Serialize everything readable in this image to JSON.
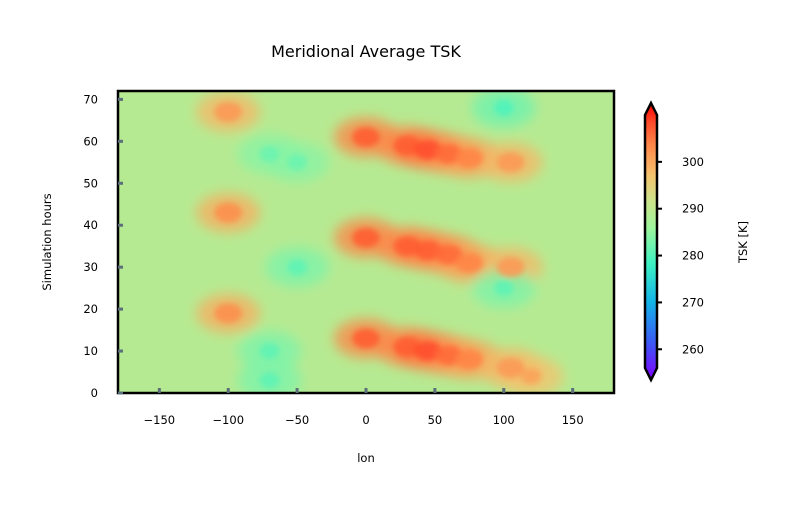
{
  "chart_data": {
    "type": "heatmap",
    "title": "Meridional Average TSK",
    "xlabel": "lon",
    "ylabel": "Simulation hours",
    "xlim": [
      -180,
      180
    ],
    "ylim": [
      0,
      72
    ],
    "xticks": [
      -150,
      -100,
      -50,
      0,
      50,
      100,
      150
    ],
    "yticks": [
      0,
      10,
      20,
      30,
      40,
      50,
      60,
      70
    ],
    "colorbar": {
      "label": "TSK [K]",
      "range": [
        256,
        310
      ],
      "ticks": [
        260,
        270,
        280,
        290,
        300
      ],
      "extend": "both",
      "colormap": "rainbow"
    },
    "baseline_K": 287,
    "features": [
      {
        "lon": -100,
        "hour": 67,
        "value_K": 300
      },
      {
        "lon": -100,
        "hour": 43,
        "value_K": 301
      },
      {
        "lon": -100,
        "hour": 19,
        "value_K": 301
      },
      {
        "lon": 0,
        "hour": 61,
        "value_K": 305
      },
      {
        "lon": 30,
        "hour": 59,
        "value_K": 305
      },
      {
        "lon": 45,
        "hour": 58,
        "value_K": 306
      },
      {
        "lon": 60,
        "hour": 57,
        "value_K": 304
      },
      {
        "lon": 75,
        "hour": 56,
        "value_K": 302
      },
      {
        "lon": 105,
        "hour": 55,
        "value_K": 300
      },
      {
        "lon": 0,
        "hour": 37,
        "value_K": 305
      },
      {
        "lon": 30,
        "hour": 35,
        "value_K": 305
      },
      {
        "lon": 45,
        "hour": 34,
        "value_K": 305
      },
      {
        "lon": 60,
        "hour": 33,
        "value_K": 304
      },
      {
        "lon": 75,
        "hour": 31,
        "value_K": 302
      },
      {
        "lon": 105,
        "hour": 30,
        "value_K": 300
      },
      {
        "lon": 0,
        "hour": 13,
        "value_K": 305
      },
      {
        "lon": 30,
        "hour": 11,
        "value_K": 305
      },
      {
        "lon": 45,
        "hour": 10,
        "value_K": 306
      },
      {
        "lon": 60,
        "hour": 9,
        "value_K": 304
      },
      {
        "lon": 75,
        "hour": 8,
        "value_K": 302
      },
      {
        "lon": 105,
        "hour": 6,
        "value_K": 300
      },
      {
        "lon": 120,
        "hour": 4,
        "value_K": 299
      },
      {
        "lon": 100,
        "hour": 68,
        "value_K": 280
      },
      {
        "lon": 100,
        "hour": 25,
        "value_K": 281
      },
      {
        "lon": -70,
        "hour": 57,
        "value_K": 282
      },
      {
        "lon": -70,
        "hour": 10,
        "value_K": 281
      },
      {
        "lon": -50,
        "hour": 30,
        "value_K": 281
      },
      {
        "lon": -50,
        "hour": 55,
        "value_K": 282
      },
      {
        "lon": -70,
        "hour": 3,
        "value_K": 281
      }
    ]
  }
}
